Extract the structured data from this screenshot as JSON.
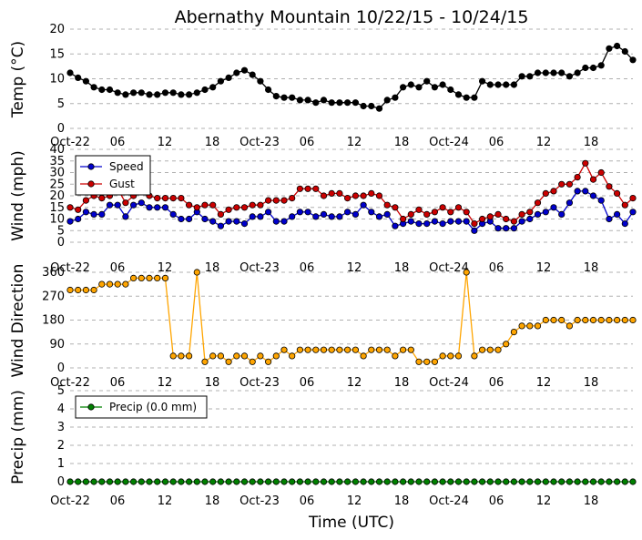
{
  "title": "Abernathy Mountain 10/22/15 - 10/24/15",
  "xlabel": "Time (UTC)",
  "xticks": [
    "Oct-22",
    "06",
    "12",
    "18",
    "Oct-23",
    "06",
    "12",
    "18",
    "Oct-24",
    "06",
    "12",
    "18"
  ],
  "chart_data": [
    {
      "type": "line",
      "ylabel": "Temp (°C)",
      "ylim": [
        0,
        20
      ],
      "yticks": [
        0,
        5,
        10,
        15,
        20
      ],
      "grid": true,
      "series": [
        {
          "color": "#000000",
          "values": [
            11.2,
            10.2,
            9.5,
            8.3,
            7.8,
            7.8,
            7.2,
            6.8,
            7.2,
            7.2,
            6.8,
            6.8,
            7.2,
            7.2,
            6.8,
            6.8,
            7.2,
            7.8,
            8.3,
            9.5,
            10.2,
            11.2,
            11.7,
            10.8,
            9.5,
            7.8,
            6.5,
            6.2,
            6.2,
            5.7,
            5.7,
            5.2,
            5.7,
            5.2,
            5.2,
            5.2,
            5.2,
            4.5,
            4.5,
            4.0,
            5.7,
            6.2,
            8.3,
            8.8,
            8.3,
            9.5,
            8.3,
            8.8,
            7.8,
            6.8,
            6.2,
            6.2,
            9.5,
            8.8,
            8.8,
            8.8,
            8.8,
            10.5,
            10.5,
            11.2,
            11.2,
            11.2,
            11.2,
            10.5,
            11.2,
            12.2,
            12.2,
            12.7,
            16.1,
            16.6,
            15.5,
            13.8
          ]
        }
      ]
    },
    {
      "type": "line",
      "ylabel": "Wind (mph)",
      "ylim": [
        0,
        40
      ],
      "yticks": [
        0,
        5,
        10,
        15,
        20,
        25,
        30,
        35,
        40
      ],
      "grid": true,
      "legend": "top-left",
      "series": [
        {
          "name": "Speed",
          "color": "#0000cc",
          "values": [
            9,
            10,
            13,
            12,
            12,
            16,
            16,
            11,
            16,
            17,
            15,
            15,
            15,
            12,
            10,
            10,
            13,
            10,
            9,
            7,
            9,
            9,
            8,
            11,
            11,
            13,
            9,
            9,
            11,
            13,
            13,
            11,
            12,
            11,
            11,
            13,
            12,
            16,
            13,
            11,
            12,
            7,
            8,
            9,
            8,
            8,
            9,
            8,
            9,
            9,
            9,
            5,
            8,
            9,
            6,
            6,
            6,
            9,
            10,
            12,
            13,
            15,
            12,
            17,
            22,
            22,
            20,
            18,
            10,
            12,
            8,
            13
          ]
        },
        {
          "name": "Gust",
          "color": "#cc0000",
          "values": [
            15,
            14,
            18,
            20,
            19,
            20,
            23,
            17,
            20,
            22,
            20,
            19,
            19,
            19,
            19,
            16,
            15,
            16,
            16,
            12,
            14,
            15,
            15,
            16,
            16,
            18,
            18,
            18,
            19,
            23,
            23,
            23,
            20,
            21,
            21,
            19,
            20,
            20,
            21,
            20,
            16,
            15,
            10,
            12,
            14,
            12,
            13,
            15,
            13,
            15,
            13,
            8,
            10,
            11,
            12,
            10,
            9,
            12,
            13,
            17,
            21,
            22,
            25,
            25,
            28,
            34,
            27,
            30,
            24,
            21,
            16,
            19
          ]
        }
      ]
    },
    {
      "type": "line",
      "ylabel": "Wind Direction",
      "ylim": [
        0,
        360
      ],
      "yticks": [
        0,
        90,
        180,
        270,
        360
      ],
      "grid": true,
      "series": [
        {
          "color": "#ffa500",
          "values": [
            293,
            293,
            293,
            293,
            315,
            315,
            315,
            315,
            338,
            338,
            338,
            338,
            338,
            45,
            45,
            45,
            360,
            23,
            45,
            45,
            23,
            45,
            45,
            23,
            45,
            23,
            45,
            68,
            45,
            68,
            68,
            68,
            68,
            68,
            68,
            68,
            68,
            45,
            68,
            68,
            68,
            45,
            68,
            68,
            23,
            23,
            23,
            45,
            45,
            45,
            360,
            45,
            68,
            68,
            68,
            90,
            135,
            158,
            158,
            158,
            180,
            180,
            180,
            158,
            180,
            180,
            180,
            180,
            180,
            180,
            180,
            180
          ]
        }
      ]
    },
    {
      "type": "line",
      "ylabel": "Precip (mm)",
      "ylim": [
        0,
        5
      ],
      "yticks": [
        0,
        1,
        2,
        3,
        4,
        5
      ],
      "grid": true,
      "legend": "top-left",
      "series": [
        {
          "name": "Precip (0.0 mm)",
          "color": "#008000",
          "values": [
            0,
            0,
            0,
            0,
            0,
            0,
            0,
            0,
            0,
            0,
            0,
            0,
            0,
            0,
            0,
            0,
            0,
            0,
            0,
            0,
            0,
            0,
            0,
            0,
            0,
            0,
            0,
            0,
            0,
            0,
            0,
            0,
            0,
            0,
            0,
            0,
            0,
            0,
            0,
            0,
            0,
            0,
            0,
            0,
            0,
            0,
            0,
            0,
            0,
            0,
            0,
            0,
            0,
            0,
            0,
            0,
            0,
            0,
            0,
            0,
            0,
            0,
            0,
            0,
            0,
            0,
            0,
            0,
            0,
            0,
            0,
            0
          ]
        }
      ]
    }
  ]
}
